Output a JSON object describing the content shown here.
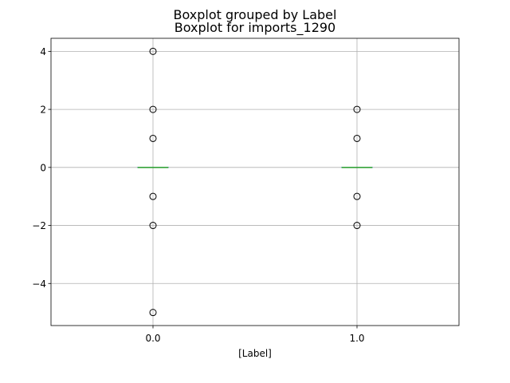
{
  "chart_data": {
    "type": "boxplot",
    "suptitle": "Boxplot grouped by Label",
    "title": "Boxplot for imports_1290",
    "xlabel": "[Label]",
    "ylabel": "",
    "categories": [
      "0.0",
      "1.0"
    ],
    "ylim": [
      -5.45,
      4.45
    ],
    "yticks": [
      -4,
      -2,
      0,
      2,
      4
    ],
    "ytick_labels": [
      "−4",
      "−2",
      "0",
      "2",
      "4"
    ],
    "grid": true,
    "groups": [
      {
        "category": "0.0",
        "q1": 0,
        "median": 0,
        "q3": 0,
        "whisker_low": 0,
        "whisker_high": 0,
        "fliers": [
          4,
          2,
          1,
          -1,
          -2,
          -5
        ]
      },
      {
        "category": "1.0",
        "q1": 0,
        "median": 0,
        "q3": 0,
        "whisker_low": 0,
        "whisker_high": 0,
        "fliers": [
          2,
          1,
          -1,
          -2
        ]
      }
    ],
    "colors": {
      "median": "#2ca02c",
      "grid": "#b0b0b0"
    }
  }
}
